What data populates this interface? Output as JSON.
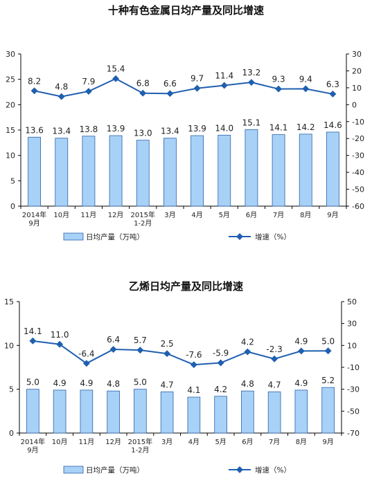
{
  "chart_data": [
    {
      "type": "bar+line",
      "title": "十种有色金属日均产量及同比增速",
      "categories": [
        "2014年\n9月",
        "10月",
        "11月",
        "12月",
        "2015年\n1-2月",
        "3月",
        "4月",
        "5月",
        "6月",
        "7月",
        "8月",
        "9月"
      ],
      "series": [
        {
          "name": "日均产量（万吨）",
          "type": "bar",
          "axis": "left",
          "values": [
            13.6,
            13.4,
            13.8,
            13.9,
            13.0,
            13.4,
            13.9,
            14.0,
            15.1,
            14.1,
            14.2,
            14.6
          ]
        },
        {
          "name": "增速（%）",
          "type": "line",
          "axis": "right",
          "values": [
            8.2,
            4.8,
            7.9,
            15.4,
            6.8,
            6.6,
            9.7,
            11.4,
            13.2,
            9.3,
            9.4,
            6.3
          ]
        }
      ],
      "ylim_left": [
        0,
        30
      ],
      "yticks_left": [
        0,
        5,
        10,
        15,
        20,
        25,
        30
      ],
      "ylim_right": [
        -60,
        30
      ],
      "yticks_right": [
        -60,
        -50,
        -40,
        -30,
        -20,
        -10,
        0,
        10,
        20,
        30
      ],
      "legend_position": "bottom",
      "grid": false
    },
    {
      "type": "bar+line",
      "title": "乙烯日均产量及同比增速",
      "categories": [
        "2014年\n9月",
        "10月",
        "11月",
        "12月",
        "2015年\n1-2月",
        "3月",
        "4月",
        "5月",
        "6月",
        "7月",
        "8月",
        "9月"
      ],
      "series": [
        {
          "name": "日均产量（万吨）",
          "type": "bar",
          "axis": "left",
          "values": [
            5.0,
            4.9,
            4.9,
            4.8,
            5.0,
            4.7,
            4.1,
            4.2,
            4.8,
            4.7,
            4.9,
            5.2
          ]
        },
        {
          "name": "增速（%）",
          "type": "line",
          "axis": "right",
          "values": [
            14.1,
            11.0,
            -6.4,
            6.4,
            5.7,
            2.5,
            -7.6,
            -5.9,
            4.2,
            -2.3,
            4.9,
            5.0
          ]
        }
      ],
      "ylim_left": [
        0,
        15
      ],
      "yticks_left": [
        0,
        5,
        10,
        15
      ],
      "ylim_right": [
        -70,
        50
      ],
      "yticks_right": [
        -70,
        -50,
        -30,
        -10,
        10,
        30,
        50
      ],
      "legend_position": "bottom",
      "grid": false
    }
  ],
  "colors": {
    "bar_fill": "#a8d1f7",
    "bar_stroke": "#2a62a8",
    "line": "#1f5fb0",
    "axis": "#000000",
    "text": "#222222"
  }
}
